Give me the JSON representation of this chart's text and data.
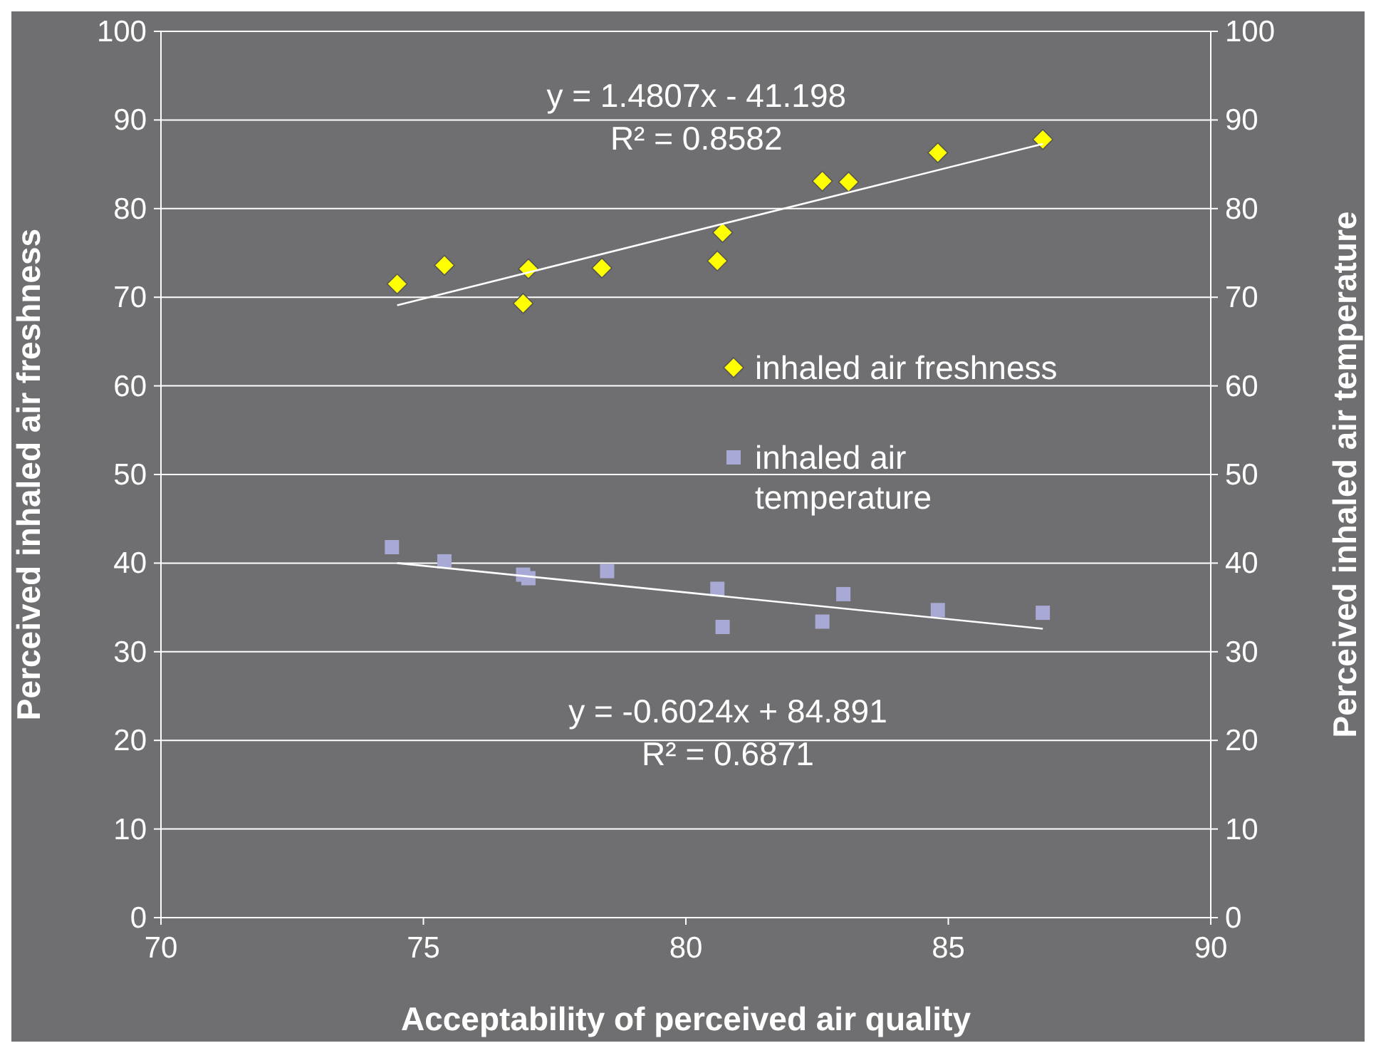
{
  "chart_data": {
    "type": "scatter",
    "xlabel": "Acceptability of perceived air quality",
    "ylabel": "Perceived inhaled air freshness",
    "y2label": "Perceived inhaled air temperature",
    "xlim": [
      70,
      90
    ],
    "xticks": [
      70,
      75,
      80,
      85,
      90
    ],
    "ylim": [
      0,
      100
    ],
    "yticks": [
      0,
      10,
      20,
      30,
      40,
      50,
      60,
      70,
      80,
      90,
      100
    ],
    "y2lim": [
      0,
      100
    ],
    "y2ticks": [
      0,
      10,
      20,
      30,
      40,
      50,
      60,
      70,
      80,
      90,
      100
    ],
    "grid": "y",
    "legend": "right",
    "series": [
      {
        "name": "inhaled air freshness",
        "color": "#ffff00",
        "marker": "diamond",
        "x": [
          74.5,
          75.4,
          76.9,
          77.0,
          78.4,
          80.6,
          80.7,
          82.6,
          83.1,
          84.8,
          86.8
        ],
        "values": [
          71.5,
          73.6,
          69.3,
          73.2,
          73.3,
          74.1,
          77.3,
          83.1,
          83.0,
          86.3,
          87.8
        ]
      },
      {
        "name": "inhaled air temperature",
        "color": "#a9a9d6",
        "marker": "square",
        "x": [
          74.4,
          75.4,
          76.9,
          77.0,
          78.5,
          80.6,
          80.7,
          82.6,
          83.0,
          84.8,
          86.8
        ],
        "values": [
          41.8,
          40.2,
          38.7,
          38.3,
          39.1,
          37.1,
          32.8,
          33.4,
          36.5,
          34.7,
          34.4
        ]
      },
      {
        "type": "line",
        "color": "#ffffff",
        "x": [
          74.5,
          86.8
        ],
        "values": [
          69.1,
          87.3
        ]
      },
      {
        "type": "line",
        "color": "#ffffff",
        "x": [
          74.5,
          86.8
        ],
        "values": [
          40.0,
          32.6
        ]
      }
    ],
    "annotations": [
      "y = 1.4807x - 41.198",
      "R² = 0.8582",
      "y = -0.6024x + 84.891",
      "R² = 0.6871"
    ]
  }
}
